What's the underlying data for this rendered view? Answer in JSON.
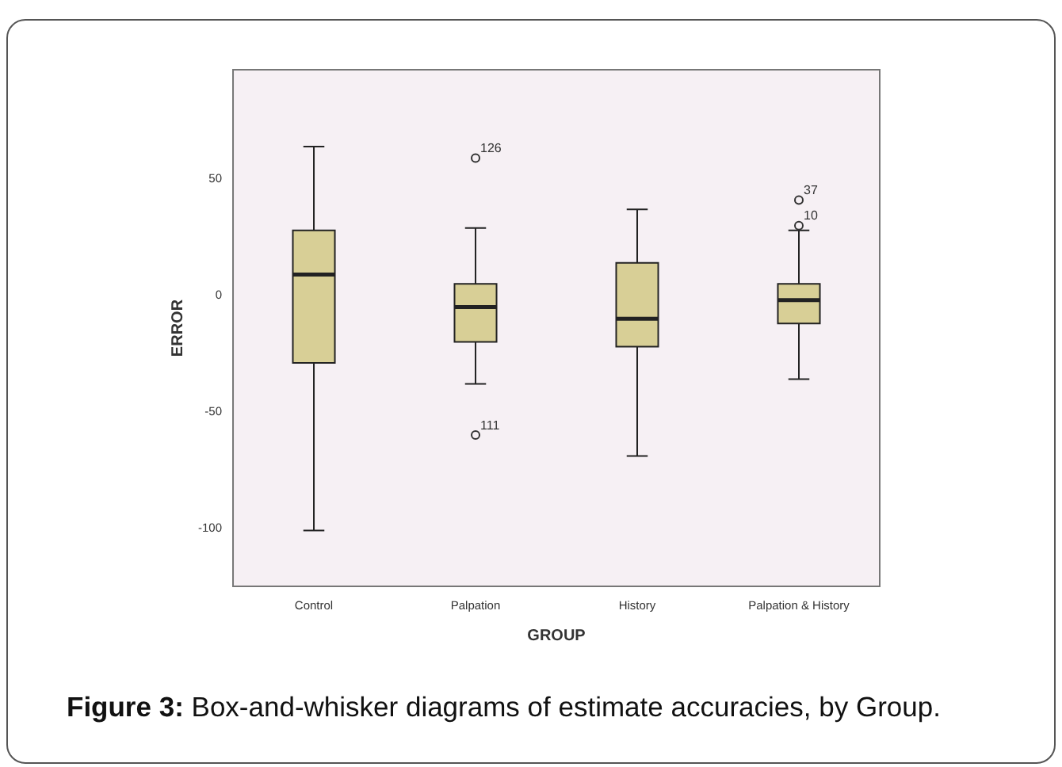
{
  "chart_data": {
    "type": "box",
    "xlabel": "GROUP",
    "ylabel": "ERROR",
    "categories": [
      "Control",
      "Palpation",
      "History",
      "Palpation & History"
    ],
    "color": "#d8cf96",
    "boxes": [
      {
        "low": -101,
        "q1": -29,
        "median": 9,
        "q3": 28,
        "high": 64
      },
      {
        "low": -38,
        "q1": -20,
        "median": -5,
        "q3": 5,
        "high": 29,
        "outliers": [
          59,
          -60
        ]
      },
      {
        "low": -69,
        "q1": -22,
        "median": -10,
        "q3": 14,
        "high": 37
      },
      {
        "low": -36,
        "q1": -12,
        "median": -2,
        "q3": 5,
        "high": 28,
        "outliers": [
          41,
          30
        ]
      }
    ],
    "ylim": [
      -125,
      97
    ],
    "yticks": [
      -100,
      -50,
      0,
      50
    ],
    "grid": false,
    "legend": false,
    "marker": "circle",
    "annotations": [
      "126",
      "111",
      "37",
      "10",
      "Figure 3: Box-and-whisker diagrams of estimate accuracies, by Group."
    ]
  }
}
